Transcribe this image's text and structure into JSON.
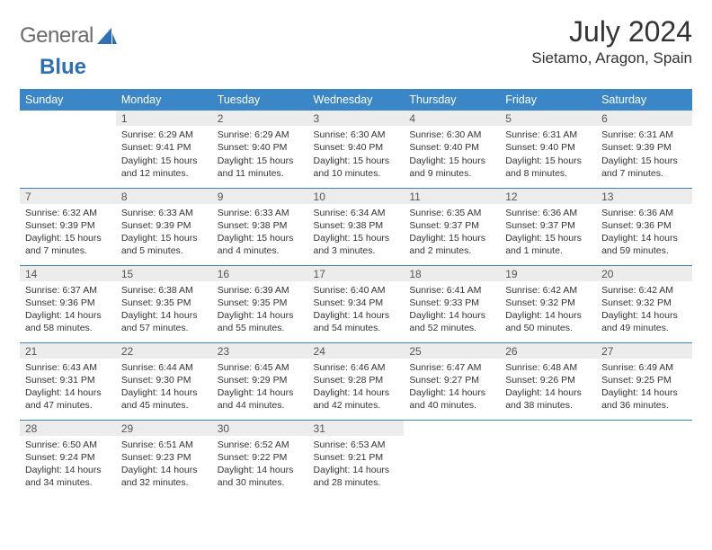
{
  "brand": {
    "word1": "General",
    "word2": "Blue",
    "word2_color": "#2f6fb3",
    "shape_color": "#2f6fb3"
  },
  "header": {
    "month_title": "July 2024",
    "location": "Sietamo, Aragon, Spain"
  },
  "colors": {
    "header_bg": "#3b86c6",
    "header_text": "#ffffff",
    "daynum_bg": "#ececec",
    "daynum_text": "#555555",
    "body_text": "#333333",
    "rule": "#3b86c6",
    "logo_gray": "#6a6a6a"
  },
  "weekdays": [
    "Sunday",
    "Monday",
    "Tuesday",
    "Wednesday",
    "Thursday",
    "Friday",
    "Saturday"
  ],
  "start_offset": 1,
  "days": [
    {
      "n": "1",
      "sunrise": "Sunrise: 6:29 AM",
      "sunset": "Sunset: 9:41 PM",
      "day1": "Daylight: 15 hours",
      "day2": "and 12 minutes."
    },
    {
      "n": "2",
      "sunrise": "Sunrise: 6:29 AM",
      "sunset": "Sunset: 9:40 PM",
      "day1": "Daylight: 15 hours",
      "day2": "and 11 minutes."
    },
    {
      "n": "3",
      "sunrise": "Sunrise: 6:30 AM",
      "sunset": "Sunset: 9:40 PM",
      "day1": "Daylight: 15 hours",
      "day2": "and 10 minutes."
    },
    {
      "n": "4",
      "sunrise": "Sunrise: 6:30 AM",
      "sunset": "Sunset: 9:40 PM",
      "day1": "Daylight: 15 hours",
      "day2": "and 9 minutes."
    },
    {
      "n": "5",
      "sunrise": "Sunrise: 6:31 AM",
      "sunset": "Sunset: 9:40 PM",
      "day1": "Daylight: 15 hours",
      "day2": "and 8 minutes."
    },
    {
      "n": "6",
      "sunrise": "Sunrise: 6:31 AM",
      "sunset": "Sunset: 9:39 PM",
      "day1": "Daylight: 15 hours",
      "day2": "and 7 minutes."
    },
    {
      "n": "7",
      "sunrise": "Sunrise: 6:32 AM",
      "sunset": "Sunset: 9:39 PM",
      "day1": "Daylight: 15 hours",
      "day2": "and 7 minutes."
    },
    {
      "n": "8",
      "sunrise": "Sunrise: 6:33 AM",
      "sunset": "Sunset: 9:39 PM",
      "day1": "Daylight: 15 hours",
      "day2": "and 5 minutes."
    },
    {
      "n": "9",
      "sunrise": "Sunrise: 6:33 AM",
      "sunset": "Sunset: 9:38 PM",
      "day1": "Daylight: 15 hours",
      "day2": "and 4 minutes."
    },
    {
      "n": "10",
      "sunrise": "Sunrise: 6:34 AM",
      "sunset": "Sunset: 9:38 PM",
      "day1": "Daylight: 15 hours",
      "day2": "and 3 minutes."
    },
    {
      "n": "11",
      "sunrise": "Sunrise: 6:35 AM",
      "sunset": "Sunset: 9:37 PM",
      "day1": "Daylight: 15 hours",
      "day2": "and 2 minutes."
    },
    {
      "n": "12",
      "sunrise": "Sunrise: 6:36 AM",
      "sunset": "Sunset: 9:37 PM",
      "day1": "Daylight: 15 hours",
      "day2": "and 1 minute."
    },
    {
      "n": "13",
      "sunrise": "Sunrise: 6:36 AM",
      "sunset": "Sunset: 9:36 PM",
      "day1": "Daylight: 14 hours",
      "day2": "and 59 minutes."
    },
    {
      "n": "14",
      "sunrise": "Sunrise: 6:37 AM",
      "sunset": "Sunset: 9:36 PM",
      "day1": "Daylight: 14 hours",
      "day2": "and 58 minutes."
    },
    {
      "n": "15",
      "sunrise": "Sunrise: 6:38 AM",
      "sunset": "Sunset: 9:35 PM",
      "day1": "Daylight: 14 hours",
      "day2": "and 57 minutes."
    },
    {
      "n": "16",
      "sunrise": "Sunrise: 6:39 AM",
      "sunset": "Sunset: 9:35 PM",
      "day1": "Daylight: 14 hours",
      "day2": "and 55 minutes."
    },
    {
      "n": "17",
      "sunrise": "Sunrise: 6:40 AM",
      "sunset": "Sunset: 9:34 PM",
      "day1": "Daylight: 14 hours",
      "day2": "and 54 minutes."
    },
    {
      "n": "18",
      "sunrise": "Sunrise: 6:41 AM",
      "sunset": "Sunset: 9:33 PM",
      "day1": "Daylight: 14 hours",
      "day2": "and 52 minutes."
    },
    {
      "n": "19",
      "sunrise": "Sunrise: 6:42 AM",
      "sunset": "Sunset: 9:32 PM",
      "day1": "Daylight: 14 hours",
      "day2": "and 50 minutes."
    },
    {
      "n": "20",
      "sunrise": "Sunrise: 6:42 AM",
      "sunset": "Sunset: 9:32 PM",
      "day1": "Daylight: 14 hours",
      "day2": "and 49 minutes."
    },
    {
      "n": "21",
      "sunrise": "Sunrise: 6:43 AM",
      "sunset": "Sunset: 9:31 PM",
      "day1": "Daylight: 14 hours",
      "day2": "and 47 minutes."
    },
    {
      "n": "22",
      "sunrise": "Sunrise: 6:44 AM",
      "sunset": "Sunset: 9:30 PM",
      "day1": "Daylight: 14 hours",
      "day2": "and 45 minutes."
    },
    {
      "n": "23",
      "sunrise": "Sunrise: 6:45 AM",
      "sunset": "Sunset: 9:29 PM",
      "day1": "Daylight: 14 hours",
      "day2": "and 44 minutes."
    },
    {
      "n": "24",
      "sunrise": "Sunrise: 6:46 AM",
      "sunset": "Sunset: 9:28 PM",
      "day1": "Daylight: 14 hours",
      "day2": "and 42 minutes."
    },
    {
      "n": "25",
      "sunrise": "Sunrise: 6:47 AM",
      "sunset": "Sunset: 9:27 PM",
      "day1": "Daylight: 14 hours",
      "day2": "and 40 minutes."
    },
    {
      "n": "26",
      "sunrise": "Sunrise: 6:48 AM",
      "sunset": "Sunset: 9:26 PM",
      "day1": "Daylight: 14 hours",
      "day2": "and 38 minutes."
    },
    {
      "n": "27",
      "sunrise": "Sunrise: 6:49 AM",
      "sunset": "Sunset: 9:25 PM",
      "day1": "Daylight: 14 hours",
      "day2": "and 36 minutes."
    },
    {
      "n": "28",
      "sunrise": "Sunrise: 6:50 AM",
      "sunset": "Sunset: 9:24 PM",
      "day1": "Daylight: 14 hours",
      "day2": "and 34 minutes."
    },
    {
      "n": "29",
      "sunrise": "Sunrise: 6:51 AM",
      "sunset": "Sunset: 9:23 PM",
      "day1": "Daylight: 14 hours",
      "day2": "and 32 minutes."
    },
    {
      "n": "30",
      "sunrise": "Sunrise: 6:52 AM",
      "sunset": "Sunset: 9:22 PM",
      "day1": "Daylight: 14 hours",
      "day2": "and 30 minutes."
    },
    {
      "n": "31",
      "sunrise": "Sunrise: 6:53 AM",
      "sunset": "Sunset: 9:21 PM",
      "day1": "Daylight: 14 hours",
      "day2": "and 28 minutes."
    }
  ]
}
